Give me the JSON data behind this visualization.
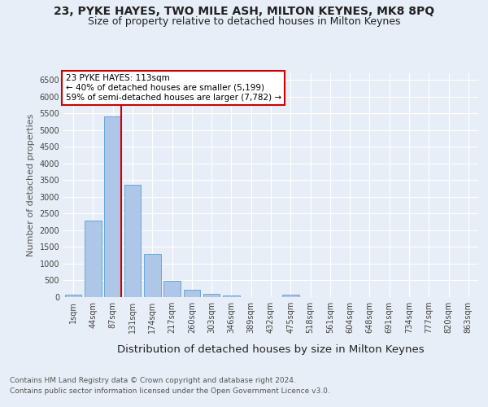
{
  "title1": "23, PYKE HAYES, TWO MILE ASH, MILTON KEYNES, MK8 8PQ",
  "title2": "Size of property relative to detached houses in Milton Keynes",
  "xlabel": "Distribution of detached houses by size in Milton Keynes",
  "ylabel": "Number of detached properties",
  "bar_labels": [
    "1sqm",
    "44sqm",
    "87sqm",
    "131sqm",
    "174sqm",
    "217sqm",
    "260sqm",
    "303sqm",
    "346sqm",
    "389sqm",
    "432sqm",
    "475sqm",
    "518sqm",
    "561sqm",
    "604sqm",
    "648sqm",
    "691sqm",
    "734sqm",
    "777sqm",
    "820sqm",
    "863sqm"
  ],
  "bar_values": [
    75,
    2280,
    5420,
    3360,
    1290,
    480,
    220,
    95,
    55,
    0,
    0,
    65,
    0,
    0,
    0,
    0,
    0,
    0,
    0,
    0,
    0
  ],
  "bar_color": "#aec6e8",
  "bar_edge_color": "#5a9fd4",
  "annotation_text": "23 PYKE HAYES: 113sqm\n← 40% of detached houses are smaller (5,199)\n59% of semi-detached houses are larger (7,782) →",
  "annotation_box_color": "#ffffff",
  "annotation_box_edge": "#cc0000",
  "red_line_x": 2.43,
  "red_line_color": "#cc0000",
  "ylim": [
    0,
    6700
  ],
  "yticks": [
    0,
    500,
    1000,
    1500,
    2000,
    2500,
    3000,
    3500,
    4000,
    4500,
    5000,
    5500,
    6000,
    6500
  ],
  "bg_color": "#e8eef7",
  "plot_bg": "#e8eef7",
  "footer1": "Contains HM Land Registry data © Crown copyright and database right 2024.",
  "footer2": "Contains public sector information licensed under the Open Government Licence v3.0.",
  "title1_fontsize": 10,
  "title2_fontsize": 9,
  "xlabel_fontsize": 9.5,
  "ylabel_fontsize": 8,
  "tick_fontsize": 7,
  "annot_fontsize": 7.5,
  "footer_fontsize": 6.5
}
